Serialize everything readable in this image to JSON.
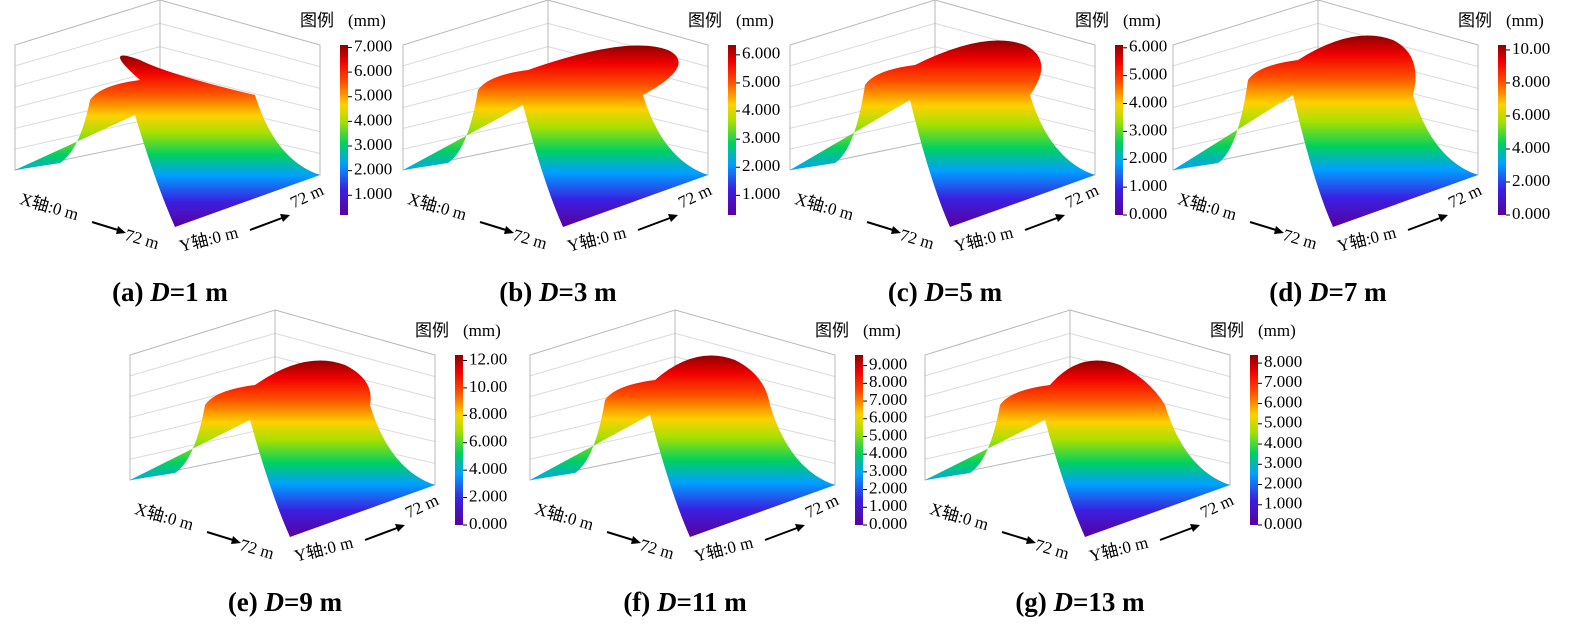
{
  "chart_data": [
    {
      "type": "surface3d",
      "title_parts": [
        "(a) ",
        "D",
        "=1 m"
      ],
      "legend_title": "图例",
      "unit": "(mm)",
      "x_label": "X轴:0 m",
      "x_end": "72 m",
      "y_label": "Y轴:0 m",
      "y_end": "72 m",
      "clim": [
        0.2,
        7.1
      ],
      "cticks": [
        {
          "value": 1,
          "label": "1.000"
        },
        {
          "value": 2,
          "label": "2.000"
        },
        {
          "value": 3,
          "label": "3.000"
        },
        {
          "value": 4,
          "label": "4.000"
        },
        {
          "value": 5,
          "label": "5.000"
        },
        {
          "value": 6,
          "label": "6.000"
        },
        {
          "value": 7,
          "label": "7.000"
        }
      ]
    },
    {
      "type": "surface3d",
      "title_parts": [
        "(b) ",
        "D",
        "=3 m"
      ],
      "legend_title": "图例",
      "unit": "(mm)",
      "x_label": "X轴:0 m",
      "x_end": "72 m",
      "y_label": "Y轴:0 m",
      "y_end": "72 m",
      "clim": [
        0.3,
        6.35
      ],
      "cticks": [
        {
          "value": 1,
          "label": "1.000"
        },
        {
          "value": 2,
          "label": "2.000"
        },
        {
          "value": 3,
          "label": "3.000"
        },
        {
          "value": 4,
          "label": "4.000"
        },
        {
          "value": 5,
          "label": "5.000"
        },
        {
          "value": 6,
          "label": "6.000"
        }
      ]
    },
    {
      "type": "surface3d",
      "title_parts": [
        "(c) ",
        "D",
        "=5 m"
      ],
      "legend_title": "图例",
      "unit": "(mm)",
      "x_label": "X轴:0 m",
      "x_end": "72 m",
      "y_label": "Y轴:0 m",
      "y_end": "72 m",
      "clim": [
        0,
        6.1
      ],
      "cticks": [
        {
          "value": 0,
          "label": "0.000"
        },
        {
          "value": 1,
          "label": "1.000"
        },
        {
          "value": 2,
          "label": "2.000"
        },
        {
          "value": 3,
          "label": "3.000"
        },
        {
          "value": 4,
          "label": "4.000"
        },
        {
          "value": 5,
          "label": "5.000"
        },
        {
          "value": 6,
          "label": "6.000"
        }
      ]
    },
    {
      "type": "surface3d",
      "title_parts": [
        "(d) ",
        "D",
        "=7 m"
      ],
      "legend_title": "图例",
      "unit": "(mm)",
      "x_label": "X轴:0 m",
      "x_end": "72 m",
      "y_label": "Y轴:0 m",
      "y_end": "72 m",
      "clim": [
        0,
        10.3
      ],
      "cticks": [
        {
          "value": 0,
          "label": "0.000"
        },
        {
          "value": 2,
          "label": "2.000"
        },
        {
          "value": 4,
          "label": "4.000"
        },
        {
          "value": 6,
          "label": "6.000"
        },
        {
          "value": 8,
          "label": "8.000"
        },
        {
          "value": 10,
          "label": "10.00"
        }
      ]
    },
    {
      "type": "surface3d",
      "title_parts": [
        "(e) ",
        "D",
        "=9 m"
      ],
      "legend_title": "图例",
      "unit": "(mm)",
      "x_label": "X轴:0 m",
      "x_end": "72 m",
      "y_label": "Y轴:0 m",
      "y_end": "72 m",
      "clim": [
        0,
        12.4
      ],
      "cticks": [
        {
          "value": 0,
          "label": "0.000"
        },
        {
          "value": 2,
          "label": "2.000"
        },
        {
          "value": 4,
          "label": "4.000"
        },
        {
          "value": 6,
          "label": "6.000"
        },
        {
          "value": 8,
          "label": "8.000"
        },
        {
          "value": 10,
          "label": "10.00"
        },
        {
          "value": 12,
          "label": "12.00"
        }
      ]
    },
    {
      "type": "surface3d",
      "title_parts": [
        "(f) ",
        "D",
        "=11 m"
      ],
      "legend_title": "图例",
      "unit": "(mm)",
      "x_label": "X轴:0 m",
      "x_end": "72 m",
      "y_label": "Y轴:0 m",
      "y_end": "72 m",
      "clim": [
        0,
        9.6
      ],
      "cticks": [
        {
          "value": 0,
          "label": "0.000"
        },
        {
          "value": 1,
          "label": "1.000"
        },
        {
          "value": 2,
          "label": "2.000"
        },
        {
          "value": 3,
          "label": "3.000"
        },
        {
          "value": 4,
          "label": "4.000"
        },
        {
          "value": 5,
          "label": "5.000"
        },
        {
          "value": 6,
          "label": "6.000"
        },
        {
          "value": 7,
          "label": "7.000"
        },
        {
          "value": 8,
          "label": "8.000"
        },
        {
          "value": 9,
          "label": "9.000"
        }
      ]
    },
    {
      "type": "surface3d",
      "title_parts": [
        "(g) ",
        "D",
        "=13 m"
      ],
      "legend_title": "图例",
      "unit": "(mm)",
      "x_label": "X轴:0 m",
      "x_end": "72 m",
      "y_label": "Y轴:0 m",
      "y_end": "72 m",
      "clim": [
        0,
        8.4
      ],
      "cticks": [
        {
          "value": 0,
          "label": "0.000"
        },
        {
          "value": 1,
          "label": "1.000"
        },
        {
          "value": 2,
          "label": "2.000"
        },
        {
          "value": 3,
          "label": "3.000"
        },
        {
          "value": 4,
          "label": "4.000"
        },
        {
          "value": 5,
          "label": "5.000"
        },
        {
          "value": 6,
          "label": "6.000"
        },
        {
          "value": 7,
          "label": "7.000"
        },
        {
          "value": 8,
          "label": "8.000"
        }
      ]
    }
  ]
}
